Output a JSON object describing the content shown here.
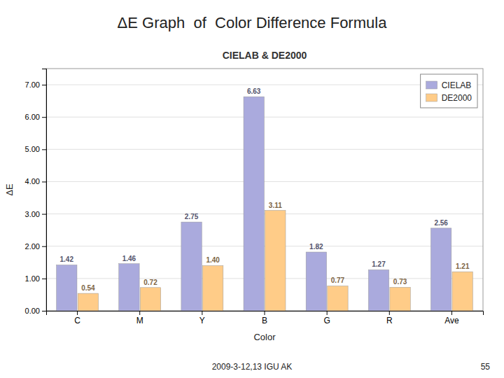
{
  "chart_data": {
    "type": "bar",
    "title": "ΔE Graph  of  Color Difference Formula",
    "subtitle": "CIELAB & DE2000",
    "categories": [
      "C",
      "M",
      "Y",
      "B",
      "G",
      "R",
      "Ave"
    ],
    "series": [
      {
        "name": "CIELAB",
        "color": "#AAAADD",
        "values": [
          1.42,
          1.46,
          2.75,
          6.63,
          1.82,
          1.27,
          2.56
        ],
        "value_labels": [
          "1.42",
          "1.46",
          "2.75",
          "6.63",
          "1.82",
          "1.27",
          "2.56"
        ]
      },
      {
        "name": "DE2000",
        "color": "#FFCC88",
        "values": [
          0.54,
          0.72,
          1.4,
          3.11,
          0.77,
          0.73,
          1.21
        ],
        "value_labels": [
          "0.54",
          "0.72",
          "1.40",
          "3.11",
          "0.77",
          "0.73",
          "1.21"
        ]
      }
    ],
    "xlabel": "Color",
    "ylabel": "ΔE",
    "ylim": [
      0.0,
      7.5
    ],
    "yticks": [
      {
        "value": 0,
        "label": "0.00"
      },
      {
        "value": 1,
        "label": "1.00"
      },
      {
        "value": 2,
        "label": "2.00"
      },
      {
        "value": 3,
        "label": "3.00"
      },
      {
        "value": 4,
        "label": "4.00"
      },
      {
        "value": 5,
        "label": "5.00"
      },
      {
        "value": 6,
        "label": "6.00"
      },
      {
        "value": 7,
        "label": "7.00"
      }
    ],
    "grid": true,
    "legend": "upper-right",
    "data_labels": true,
    "annotations": [
      "2009-3-12,13 IGU AK",
      "55"
    ]
  }
}
